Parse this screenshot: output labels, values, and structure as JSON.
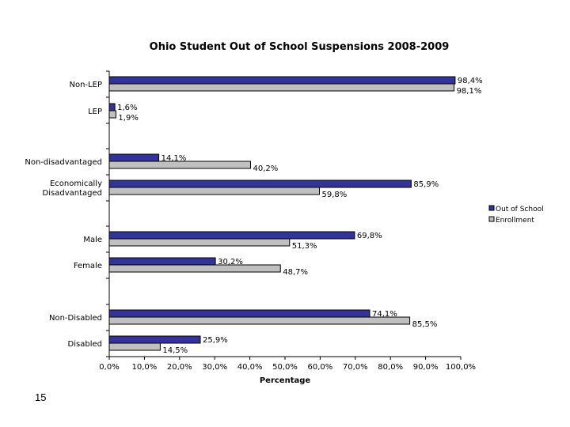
{
  "page": {
    "page_number": "15"
  },
  "chart_data": {
    "type": "bar",
    "orientation": "horizontal",
    "title": "Ohio Student Out of School Suspensions 2008-2009",
    "xlabel": "Percentage",
    "ylabel": "",
    "categories": [
      "Non-LEP",
      "LEP",
      "Non-disadvantaged",
      "Economically Disadvantaged",
      "Male",
      "Female",
      "Non-Disabled",
      "Disabled"
    ],
    "category_lines": [
      [
        "Non-LEP"
      ],
      [
        "LEP"
      ],
      [
        "Non-disadvantaged"
      ],
      [
        "Economically",
        "Disadvantaged"
      ],
      [
        "Male"
      ],
      [
        "Female"
      ],
      [
        "Non-Disabled"
      ],
      [
        "Disabled"
      ]
    ],
    "groups": [
      [
        0,
        1
      ],
      [
        2,
        3
      ],
      [
        4,
        5
      ],
      [
        6,
        7
      ]
    ],
    "series": [
      {
        "name": "Out of School",
        "color": "#333399",
        "values": [
          98.4,
          1.6,
          14.1,
          85.9,
          69.8,
          30.2,
          74.1,
          25.9
        ],
        "labels": [
          "98,4%",
          "1,6%",
          "14,1%",
          "85,9%",
          "69,8%",
          "30,2%",
          "74,1%",
          "25,9%"
        ]
      },
      {
        "name": "Enrollment",
        "color": "#c0c0c0",
        "values": [
          98.1,
          1.9,
          40.2,
          59.8,
          51.3,
          48.7,
          85.5,
          14.5
        ],
        "labels": [
          "98,1%",
          "1,9%",
          "40,2%",
          "59,8%",
          "51,3%",
          "48,7%",
          "85,5%",
          "14,5%"
        ]
      }
    ],
    "xlim": [
      0,
      100
    ],
    "xticks": [
      0,
      10,
      20,
      30,
      40,
      50,
      60,
      70,
      80,
      90,
      100
    ],
    "xtick_labels": [
      "0,0%",
      "10,0%",
      "20,0%",
      "30,0%",
      "40,0%",
      "50,0%",
      "60,0%",
      "70,0%",
      "80,0%",
      "90,0%",
      "100,0%"
    ],
    "grid": false,
    "legend": {
      "position": "right",
      "entries": [
        "Out of School",
        "Enrollment"
      ]
    }
  }
}
